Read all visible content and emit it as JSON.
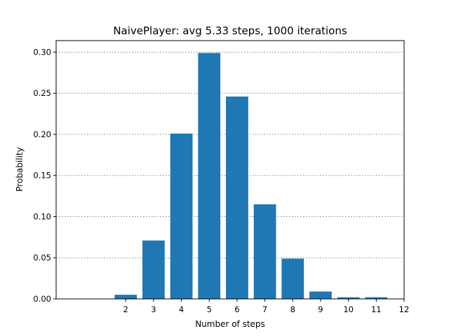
{
  "chart_data": {
    "type": "bar",
    "title": "NaivePlayer: avg 5.33 steps, 1000 iterations",
    "xlabel": "Number of steps",
    "ylabel": "Probability",
    "categories": [
      2,
      3,
      4,
      5,
      6,
      7,
      8,
      9,
      10,
      11
    ],
    "values": [
      0.005,
      0.071,
      0.201,
      0.299,
      0.246,
      0.115,
      0.049,
      0.009,
      0.002,
      0.002
    ],
    "x_ticks": [
      "2",
      "3",
      "4",
      "5",
      "6",
      "7",
      "8",
      "9",
      "10",
      "11",
      "12"
    ],
    "y_ticks": [
      "0.00",
      "0.05",
      "0.10",
      "0.15",
      "0.20",
      "0.25",
      "0.30"
    ],
    "xlim": [
      -0.5,
      12
    ],
    "ylim": [
      0,
      0.314
    ],
    "grid": "y, dotted",
    "bar_color": "#1f77b4"
  }
}
